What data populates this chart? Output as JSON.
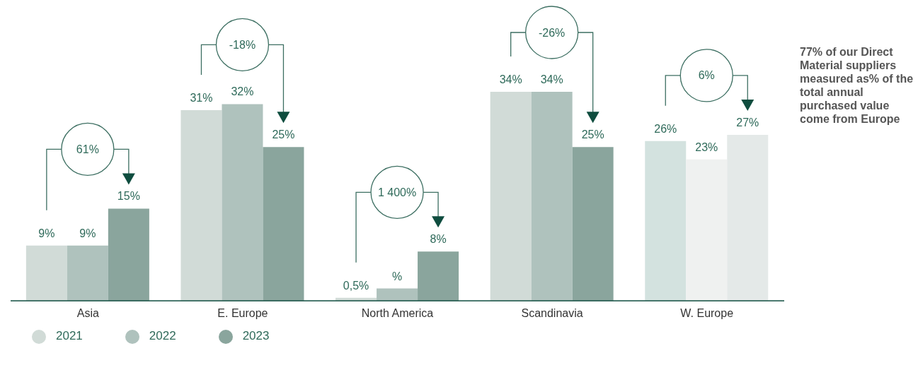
{
  "chart_data": {
    "type": "bar",
    "categories": [
      "Asia",
      "E. Europe",
      "North America",
      "Scandinavia",
      "W. Europe"
    ],
    "series": [
      {
        "name": "2021",
        "color": "#d1dbd7",
        "colors": [
          "#d1dbd7",
          "#d1dbd7",
          "#d1dbd7",
          "#d1dbd7",
          "#d3e2df"
        ],
        "values": [
          9,
          31,
          0.5,
          34,
          26
        ],
        "value_labels": [
          "9%",
          "31%",
          "0,5%",
          "34%",
          "26%"
        ]
      },
      {
        "name": "2022",
        "color": "#afc2bd",
        "colors": [
          "#afc2bd",
          "#afc2bd",
          "#afc2bd",
          "#afc2bd",
          "#eff1f0"
        ],
        "values": [
          9,
          32,
          2,
          34,
          23
        ],
        "value_labels": [
          "9%",
          "32%",
          "%",
          "34%",
          "23%"
        ]
      },
      {
        "name": "2023",
        "color": "#8aa59d",
        "colors": [
          "#8aa59d",
          "#8aa59d",
          "#8aa59d",
          "#8aa59d",
          "#e4e9e8"
        ],
        "values": [
          15,
          25,
          8,
          25,
          27
        ],
        "value_labels": [
          "15%",
          "25%",
          "8%",
          "25%",
          "27%"
        ]
      }
    ],
    "annotations": [
      "61%",
      "-18%",
      "1 400%",
      "-26%",
      "6%",
      "77% of our Direct Material suppliers measured as% of the total annual purchased value come from Europe"
    ],
    "legend": "bottom left",
    "grid": false
  }
}
